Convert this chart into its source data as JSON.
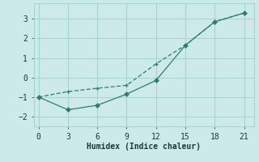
{
  "xlabel": "Humidex (Indice chaleur)",
  "background_color": "#cceae7",
  "grid_color": "#aad4d0",
  "line_color": "#2e7d72",
  "line1_x": [
    0,
    3,
    6,
    9,
    12,
    15,
    18,
    21
  ],
  "line1_y": [
    -1.0,
    -0.72,
    -0.55,
    -0.4,
    0.7,
    1.65,
    2.85,
    3.3
  ],
  "line2_x": [
    0,
    3,
    6,
    9,
    12,
    15,
    18,
    21
  ],
  "line2_y": [
    -1.0,
    -1.65,
    -1.42,
    -0.85,
    -0.15,
    1.65,
    2.85,
    3.3
  ],
  "xlim": [
    -0.5,
    22
  ],
  "ylim": [
    -2.5,
    3.8
  ],
  "xticks": [
    0,
    3,
    6,
    9,
    12,
    15,
    18,
    21
  ],
  "yticks": [
    -2,
    -1,
    0,
    1,
    2,
    3
  ],
  "fontsize_label": 7,
  "fontsize_tick": 7
}
